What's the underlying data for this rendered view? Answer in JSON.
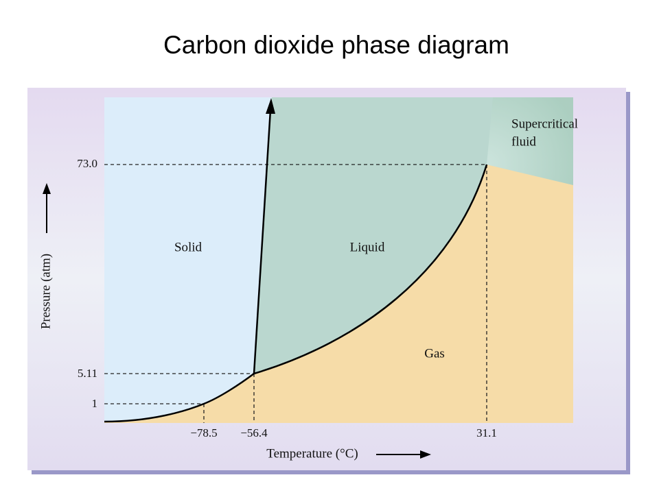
{
  "title": "Carbon dioxide phase diagram",
  "axes": {
    "y_label": "Pressure (atm)",
    "x_label": "Temperature (°C)"
  },
  "y_ticks": [
    "73.0",
    "5.11",
    "1"
  ],
  "x_ticks": [
    "−78.5",
    "−56.4",
    "31.1"
  ],
  "regions": {
    "solid": "Solid",
    "liquid": "Liquid",
    "gas": "Gas",
    "supercritical": [
      "Supercritical",
      "fluid"
    ]
  }
}
